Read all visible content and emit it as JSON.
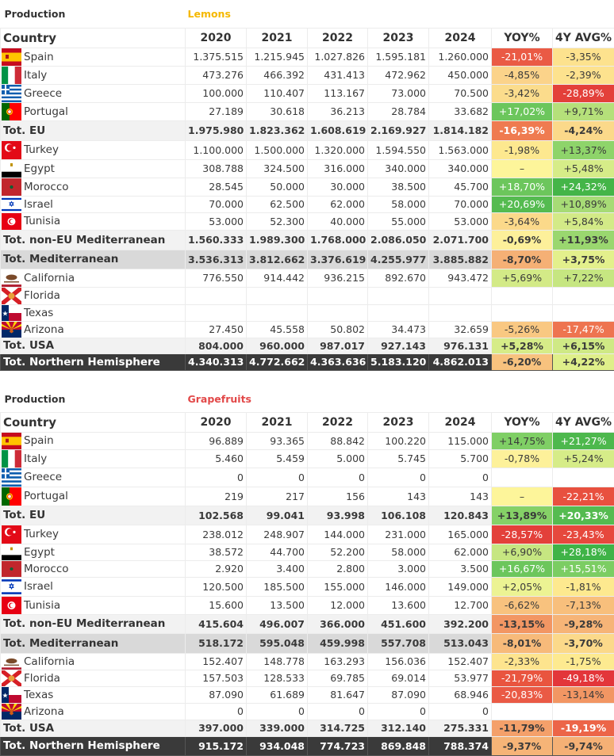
{
  "colors": {
    "lemons_title": "#f5b800",
    "grapefruits_title": "#e24848",
    "red_strong": "#e8423a",
    "red": "#ea5a45",
    "orange_red": "#ef7b50",
    "orange": "#f5a66e",
    "light_orange": "#f8c27e",
    "yellow_orange": "#fbd98a",
    "yellow": "#fdec96",
    "pale_yellow": "#fef7a0",
    "yellow_green": "#dfef8a",
    "light_green": "#c2e67d",
    "green": "#8ed46a",
    "green_strong": "#6cc65c",
    "green_dark": "#44b548"
  },
  "columns": {
    "country": "Country",
    "years": [
      "2020",
      "2021",
      "2022",
      "2023",
      "2024"
    ],
    "yoy": "YOY%",
    "avg": "4Y AVG%"
  },
  "tables": [
    {
      "title": "Production",
      "fruit": "Lemons",
      "rows": [
        {
          "type": "country",
          "name": "Spain",
          "flag": "spain-flag",
          "values": [
            "1.375.515",
            "1.215.945",
            "1.027.826",
            "1.595.181",
            "1.260.000"
          ],
          "yoy": "-21,01%",
          "yoy_color": "#ea5a45",
          "avg": "-3,35%",
          "avg_color": "#fde28e"
        },
        {
          "type": "country",
          "name": "Italy",
          "flag": "italy-flag",
          "values": [
            "473.276",
            "466.392",
            "431.413",
            "472.962",
            "450.000"
          ],
          "yoy": "-4,85%",
          "yoy_color": "#fbd38a",
          "avg": "-2,39%",
          "avg_color": "#fde28e"
        },
        {
          "type": "country",
          "name": "Greece",
          "flag": "greece-flag",
          "values": [
            "100.000",
            "110.407",
            "113.167",
            "73.000",
            "70.500"
          ],
          "yoy": "-3,42%",
          "yoy_color": "#fbdc8c",
          "avg": "-28,89%",
          "avg_color": "#e3403a"
        },
        {
          "type": "country",
          "name": "Portugal",
          "flag": "portugal-flag",
          "values": [
            "27.189",
            "30.618",
            "36.213",
            "28.784",
            "33.682"
          ],
          "yoy": "+17,02%",
          "yoy_color": "#6cc65c",
          "avg": "+9,71%",
          "avg_color": "#b5e07a"
        },
        {
          "type": "tot",
          "name": "Tot. EU",
          "values": [
            "1.975.980",
            "1.823.362",
            "1.608.619",
            "2.169.927",
            "1.814.182"
          ],
          "yoy": "-16,39%",
          "yoy_color": "#ef7b50",
          "avg": "-4,24%",
          "avg_color": "#fbd98a"
        },
        {
          "type": "country",
          "name": "Turkey",
          "flag": "turkey-flag",
          "values": [
            "1.100.000",
            "1.500.000",
            "1.320.000",
            "1.594.550",
            "1.563.000"
          ],
          "yoy": "-1,98%",
          "yoy_color": "#fde88f",
          "avg": "+13,37%",
          "avg_color": "#8ed46a"
        },
        {
          "type": "country",
          "name": "Egypt",
          "flag": "egypt-flag",
          "values": [
            "308.788",
            "324.500",
            "316.000",
            "340.000",
            "340.000"
          ],
          "yoy": "–",
          "yoy_color": "#fdf59a",
          "avg": "+5,48%",
          "avg_color": "#d6ec88"
        },
        {
          "type": "country",
          "name": "Morocco",
          "flag": "morocco-flag",
          "values": [
            "28.545",
            "50.000",
            "30.000",
            "38.500",
            "45.700"
          ],
          "yoy": "+18,70%",
          "yoy_color": "#6cc65c",
          "avg": "+24,32%",
          "avg_color": "#44b548"
        },
        {
          "type": "country",
          "name": "Israel",
          "flag": "israel-flag",
          "values": [
            "70.000",
            "62.500",
            "62.000",
            "58.000",
            "70.000"
          ],
          "yoy": "+20,69%",
          "yoy_color": "#55bb50",
          "avg": "+10,89%",
          "avg_color": "#a7db76"
        },
        {
          "type": "country",
          "name": "Tunisia",
          "flag": "tunisia-flag",
          "values": [
            "53.000",
            "52.300",
            "40.000",
            "55.000",
            "53.000"
          ],
          "yoy": "-3,64%",
          "yoy_color": "#fbd98a",
          "avg": "+5,84%",
          "avg_color": "#d3ea87"
        },
        {
          "type": "tot",
          "name": "Tot. non-EU Mediterranean",
          "values": [
            "1.560.333",
            "1.989.300",
            "1.768.000",
            "2.086.050",
            "2.071.700"
          ],
          "yoy": "-0,69%",
          "yoy_color": "#fdf09a",
          "avg": "+11,93%",
          "avg_color": "#9ad76f"
        },
        {
          "type": "totmed",
          "name": "Tot. Mediterranean",
          "values": [
            "3.536.313",
            "3.812.662",
            "3.376.619",
            "4.255.977",
            "3.885.882"
          ],
          "yoy": "-8,70%",
          "yoy_color": "#f5b075",
          "avg": "+3,75%",
          "avg_color": "#e3f08c"
        },
        {
          "type": "country",
          "name": "California",
          "flag": "california-flag",
          "values": [
            "776.550",
            "914.442",
            "936.215",
            "892.670",
            "943.472"
          ],
          "yoy": "+5,69%",
          "yoy_color": "#d3ea87",
          "avg": "+7,22%",
          "avg_color": "#c6e681"
        },
        {
          "type": "country",
          "name": "Florida",
          "flag": "florida-flag",
          "values": [
            "",
            "",
            "",
            "",
            ""
          ],
          "yoy": "",
          "yoy_color": "#ffffff",
          "avg": "",
          "avg_color": "#ffffff"
        },
        {
          "type": "country",
          "name": "Texas",
          "flag": "texas-flag",
          "values": [
            "",
            "",
            "",
            "",
            ""
          ],
          "yoy": "",
          "yoy_color": "#ffffff",
          "avg": "",
          "avg_color": "#ffffff"
        },
        {
          "type": "country",
          "name": "Arizona",
          "flag": "arizona-flag",
          "values": [
            "27.450",
            "45.558",
            "50.802",
            "34.473",
            "32.659"
          ],
          "yoy": "-5,26%",
          "yoy_color": "#f9c882",
          "avg": "-17,47%",
          "avg_color": "#ee7450"
        },
        {
          "type": "tot",
          "name": "Tot. USA",
          "values": [
            "804.000",
            "960.000",
            "987.017",
            "927.143",
            "976.131"
          ],
          "yoy": "+5,28%",
          "yoy_color": "#d6ec88",
          "avg": "+6,15%",
          "avg_color": "#cfe985"
        },
        {
          "type": "totnh",
          "name": "Tot. Northern Hemisphere",
          "values": [
            "4.340.313",
            "4.772.662",
            "4.363.636",
            "5.183.120",
            "4.862.013"
          ],
          "yoy": "-6,20%",
          "yoy_color": "#f8c27e",
          "avg": "+4,22%",
          "avg_color": "#dfef8a"
        }
      ]
    },
    {
      "title": "Production",
      "fruit": "Grapefruits",
      "rows": [
        {
          "type": "country",
          "name": "Spain",
          "flag": "spain-flag",
          "values": [
            "96.889",
            "93.365",
            "88.842",
            "100.220",
            "115.000"
          ],
          "yoy": "+14,75%",
          "yoy_color": "#7fcf65",
          "avg": "+21,27%",
          "avg_color": "#4db84d"
        },
        {
          "type": "country",
          "name": "Italy",
          "flag": "italy-flag",
          "values": [
            "5.460",
            "5.459",
            "5.000",
            "5.745",
            "5.700"
          ],
          "yoy": "-0,78%",
          "yoy_color": "#fdf19a",
          "avg": "+5,24%",
          "avg_color": "#d6ec88"
        },
        {
          "type": "country",
          "name": "Greece",
          "flag": "greece-flag",
          "values": [
            "0",
            "0",
            "0",
            "0",
            "0"
          ],
          "yoy": "",
          "yoy_color": "#ffffff",
          "avg": "",
          "avg_color": "#ffffff"
        },
        {
          "type": "country",
          "name": "Portugal",
          "flag": "portugal-flag",
          "values": [
            "219",
            "217",
            "156",
            "143",
            "143"
          ],
          "yoy": "–",
          "yoy_color": "#fdf59a",
          "avg": "-22,21%",
          "avg_color": "#e8503f"
        },
        {
          "type": "tot",
          "name": "Tot. EU",
          "values": [
            "102.568",
            "99.041",
            "93.998",
            "106.108",
            "120.843"
          ],
          "yoy": "+13,89%",
          "yoy_color": "#85d167",
          "avg": "+20,33%",
          "avg_color": "#55bb50"
        },
        {
          "type": "country",
          "name": "Turkey",
          "flag": "turkey-flag",
          "values": [
            "238.012",
            "248.907",
            "144.000",
            "231.000",
            "165.000"
          ],
          "yoy": "-28,57%",
          "yoy_color": "#e3403a",
          "avg": "-23,43%",
          "avg_color": "#e6483d"
        },
        {
          "type": "country",
          "name": "Egypt",
          "flag": "egypt-flag",
          "values": [
            "38.572",
            "44.700",
            "52.200",
            "58.000",
            "62.000"
          ],
          "yoy": "+6,90%",
          "yoy_color": "#c6e681",
          "avg": "+28,18%",
          "avg_color": "#3fb347"
        },
        {
          "type": "country",
          "name": "Morocco",
          "flag": "morocco-flag",
          "values": [
            "2.920",
            "3.400",
            "2.800",
            "3.000",
            "3.500"
          ],
          "yoy": "+16,67%",
          "yoy_color": "#6cc65c",
          "avg": "+15,51%",
          "avg_color": "#7bcd63"
        },
        {
          "type": "country",
          "name": "Israel",
          "flag": "israel-flag",
          "values": [
            "120.500",
            "185.500",
            "155.000",
            "146.000",
            "149.000"
          ],
          "yoy": "+2,05%",
          "yoy_color": "#ecf393",
          "avg": "-1,81%",
          "avg_color": "#fde98f"
        },
        {
          "type": "country",
          "name": "Tunisia",
          "flag": "tunisia-flag",
          "values": [
            "15.600",
            "13.500",
            "12.000",
            "13.600",
            "12.700"
          ],
          "yoy": "-6,62%",
          "yoy_color": "#f8c27e",
          "avg": "-7,13%",
          "avg_color": "#f8bf7c"
        },
        {
          "type": "tot",
          "name": "Tot. non-EU Mediterranean",
          "values": [
            "415.604",
            "496.007",
            "366.000",
            "451.600",
            "392.200"
          ],
          "yoy": "-13,15%",
          "yoy_color": "#f29663",
          "avg": "-9,28%",
          "avg_color": "#f6b477"
        },
        {
          "type": "totmed",
          "name": "Tot. Mediterranean",
          "values": [
            "518.172",
            "595.048",
            "459.998",
            "557.708",
            "513.043"
          ],
          "yoy": "-8,01%",
          "yoy_color": "#f7ba7a",
          "avg": "-3,70%",
          "avg_color": "#fbd98a"
        },
        {
          "type": "country",
          "name": "California",
          "flag": "california-flag",
          "values": [
            "152.407",
            "148.778",
            "163.293",
            "156.036",
            "152.407"
          ],
          "yoy": "-2,33%",
          "yoy_color": "#fde48e",
          "avg": "-1,75%",
          "avg_color": "#fdea90"
        },
        {
          "type": "country",
          "name": "Florida",
          "flag": "florida-flag",
          "values": [
            "157.503",
            "128.533",
            "69.785",
            "69.014",
            "53.977"
          ],
          "yoy": "-21,79%",
          "yoy_color": "#e9553f",
          "avg": "-49,18%",
          "avg_color": "#e3363a"
        },
        {
          "type": "country",
          "name": "Texas",
          "flag": "texas-flag",
          "values": [
            "87.090",
            "61.689",
            "81.647",
            "87.090",
            "68.946"
          ],
          "yoy": "-20,83%",
          "yoy_color": "#ea5a45",
          "avg": "-13,14%",
          "avg_color": "#f29663"
        },
        {
          "type": "country",
          "name": "Arizona",
          "flag": "arizona-flag",
          "values": [
            "0",
            "0",
            "0",
            "0",
            "0"
          ],
          "yoy": "",
          "yoy_color": "#ffffff",
          "avg": "",
          "avg_color": "#ffffff"
        },
        {
          "type": "tot",
          "name": "Tot. USA",
          "values": [
            "397.000",
            "339.000",
            "314.725",
            "312.140",
            "275.331"
          ],
          "yoy": "-11,79%",
          "yoy_color": "#f4a06a",
          "avg": "-19,19%",
          "avg_color": "#ec6548"
        },
        {
          "type": "totnh",
          "name": "Tot. Northern Hemisphere",
          "values": [
            "915.172",
            "934.048",
            "774.723",
            "869.848",
            "788.374"
          ],
          "yoy": "-9,37%",
          "yoy_color": "#f6b477",
          "avg": "-9,74%",
          "avg_color": "#f5b075"
        }
      ]
    }
  ]
}
